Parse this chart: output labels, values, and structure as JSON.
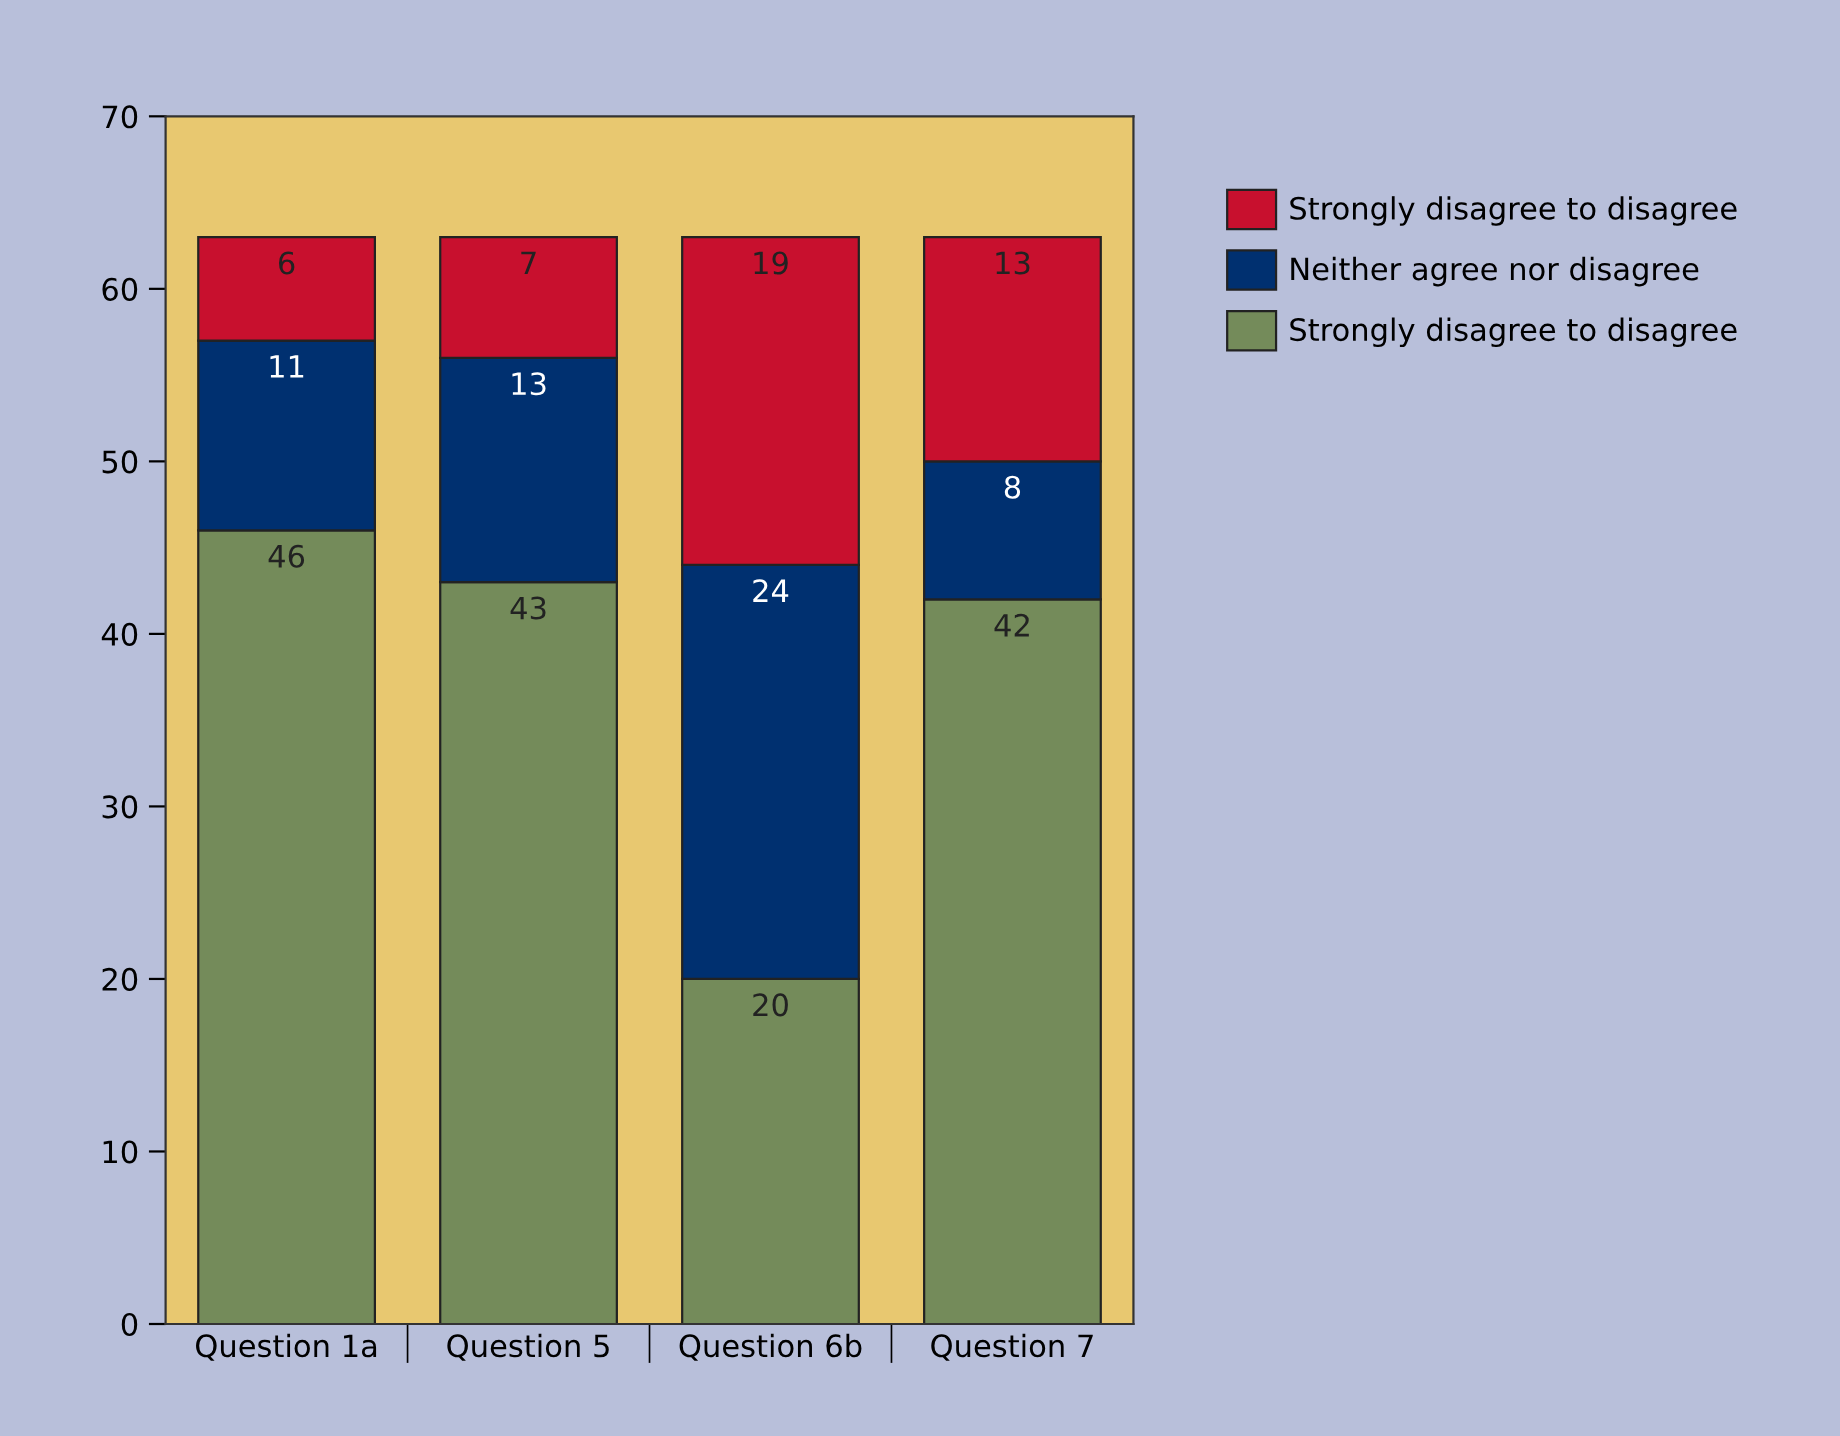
{
  "chart_data": {
    "type": "bar",
    "stacked": true,
    "categories": [
      "Question 1a",
      "Question 5",
      "Question 6b",
      "Question 7"
    ],
    "series": [
      {
        "name": "Strongly disagree to disagree",
        "color": "#748b5a",
        "values": [
          46,
          43,
          20,
          42
        ]
      },
      {
        "name": "Neither agree nor disagree",
        "color": "#003070",
        "values": [
          11,
          13,
          24,
          8
        ]
      },
      {
        "name": "Strongly disagree to disagree",
        "color": "#c8102e",
        "values": [
          6,
          7,
          19,
          13
        ]
      }
    ],
    "ylim": [
      0,
      70
    ],
    "yticks": [
      0,
      10,
      20,
      30,
      40,
      50,
      60,
      70
    ],
    "bands": [
      {
        "axis": "y",
        "from": 0,
        "to": 70,
        "color": "#e8c870"
      }
    ],
    "data_labels": true,
    "grid": false,
    "legend": "top right"
  }
}
